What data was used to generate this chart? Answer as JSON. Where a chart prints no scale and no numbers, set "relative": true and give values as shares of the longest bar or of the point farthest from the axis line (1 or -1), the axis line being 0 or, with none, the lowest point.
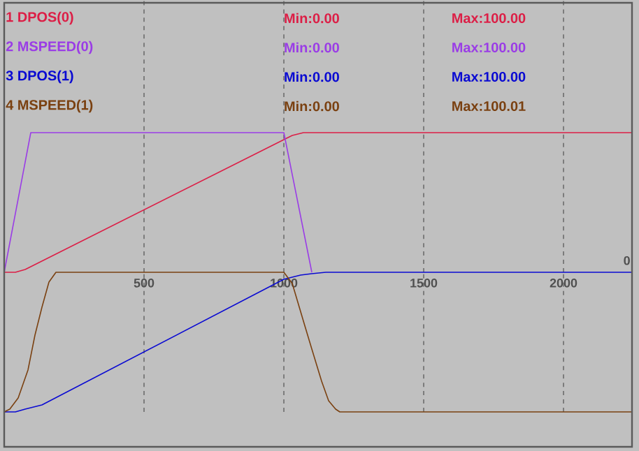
{
  "chart_data": [
    {
      "type": "line",
      "relative": true,
      "xlim": [
        0,
        2245
      ],
      "xticks": [
        500,
        1000,
        1500,
        2000
      ],
      "tick_labels": "x",
      "grid": "x",
      "series": [
        {
          "name": "1 DPOS(0)",
          "color": "#dc1e46",
          "x": [
            0,
            40,
            75,
            1000,
            1030,
            1070,
            2245
          ],
          "values": [
            0,
            0,
            0.02,
            0.95,
            0.98,
            1,
            1
          ]
        },
        {
          "name": "2 MSPEED(0)",
          "color": "#9a3ce6",
          "x": [
            0,
            95,
            1000,
            1100
          ],
          "values": [
            0,
            1,
            1,
            0
          ]
        }
      ],
      "annotations": [
        "Min:0.00",
        "Max:100.00",
        "Min:0.00",
        "Max:100.00",
        "0"
      ]
    },
    {
      "type": "line",
      "relative": true,
      "xlim": [
        0,
        2245
      ],
      "xticks": [
        500,
        1000,
        1500,
        2000
      ],
      "tick_labels": false,
      "grid": "x",
      "series": [
        {
          "name": "3 DPOS(1)",
          "color": "#0a0ad2",
          "x": [
            0,
            40,
            75,
            135,
            1000,
            1060,
            1100,
            1150,
            2245
          ],
          "values": [
            0,
            0,
            0.02,
            0.05,
            0.95,
            0.98,
            0.99,
            1,
            1
          ]
        },
        {
          "name": "4 MSPEED(1)",
          "color": "#7a4010",
          "x": [
            0,
            20,
            50,
            85,
            110,
            135,
            160,
            185,
            1000,
            1030,
            1070,
            1100,
            1135,
            1160,
            1185,
            1200,
            2245
          ],
          "values": [
            0,
            0.02,
            0.1,
            0.3,
            0.55,
            0.75,
            0.93,
            1,
            1,
            0.92,
            0.65,
            0.45,
            0.22,
            0.08,
            0.02,
            0,
            0
          ]
        }
      ],
      "annotations": [
        "Min:0.00",
        "Max:100.00",
        "Min:0.00",
        "Max:100.01"
      ]
    }
  ]
}
